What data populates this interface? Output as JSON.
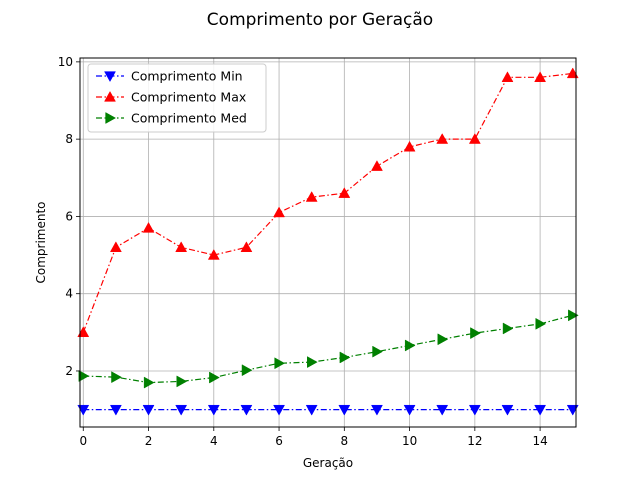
{
  "chart_data": {
    "type": "line",
    "title": "Comprimento por Geração",
    "xlabel": "Geração",
    "ylabel": "Comprimento",
    "xlim": [
      -0.1,
      15.1
    ],
    "ylim": [
      0.55,
      10.1
    ],
    "xticks": [
      0,
      2,
      4,
      6,
      8,
      10,
      12,
      14
    ],
    "yticks": [
      2,
      4,
      6,
      8,
      10
    ],
    "grid": true,
    "legend_position": "top-left",
    "x": [
      0,
      1,
      2,
      3,
      4,
      5,
      6,
      7,
      8,
      9,
      10,
      11,
      12,
      13,
      14,
      15
    ],
    "series": [
      {
        "name": "Comprimento Min",
        "color": "#0000ff",
        "marker": "triangle-down",
        "values": [
          1,
          1,
          1,
          1,
          1,
          1,
          1,
          1,
          1,
          1,
          1,
          1,
          1,
          1,
          1,
          1
        ]
      },
      {
        "name": "Comprimento Max",
        "color": "#ff0000",
        "marker": "triangle-up",
        "values": [
          3.0,
          5.2,
          5.7,
          5.2,
          5.0,
          5.2,
          6.1,
          6.5,
          6.6,
          7.3,
          7.8,
          8.0,
          8.0,
          9.6,
          9.6,
          9.7
        ]
      },
      {
        "name": "Comprimento Med",
        "color": "#008000",
        "marker": "triangle-right",
        "values": [
          1.87,
          1.84,
          1.7,
          1.73,
          1.83,
          2.02,
          2.2,
          2.23,
          2.35,
          2.5,
          2.66,
          2.82,
          2.98,
          3.1,
          3.22,
          3.44
        ]
      }
    ]
  }
}
